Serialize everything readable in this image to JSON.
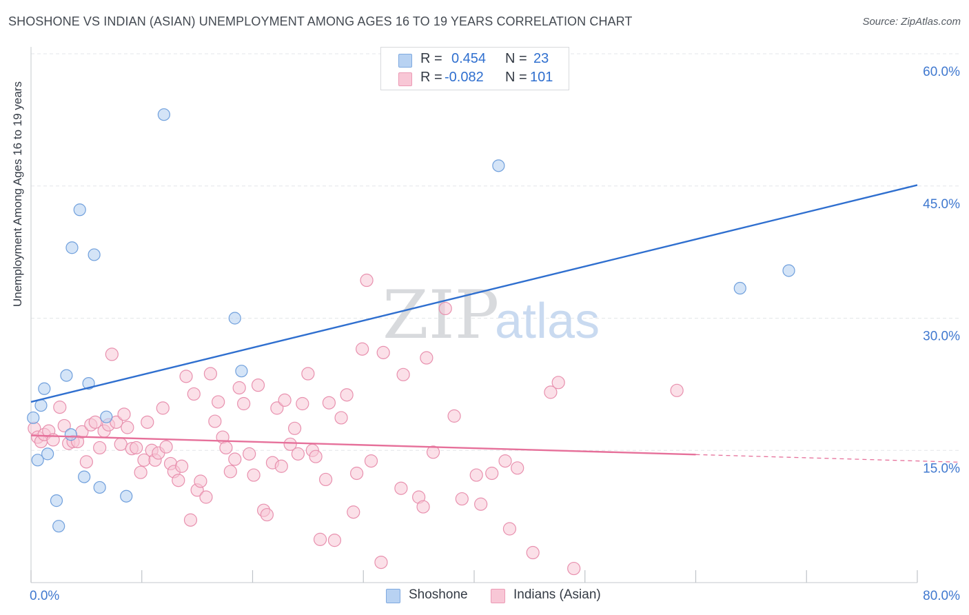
{
  "header": {
    "title": "SHOSHONE VS INDIAN (ASIAN) UNEMPLOYMENT AMONG AGES 16 TO 19 YEARS CORRELATION CHART",
    "source": "Source: ZipAtlas.com"
  },
  "watermark": {
    "zip": "ZIP",
    "atlas": "atlas"
  },
  "legend": {
    "shoshone": {
      "r_label": "R =",
      "r_value": "0.454",
      "n_label": "N =",
      "n_value": "23"
    },
    "indian": {
      "r_label": "R =",
      "r_value": "-0.082",
      "n_label": "N =",
      "n_value": "101"
    }
  },
  "bottom_legend": {
    "shoshone": "Shoshone",
    "indian": "Indians (Asian)"
  },
  "colors": {
    "blue_fill": "#b8d2f2",
    "blue_stroke": "#6f9fdc",
    "blue_line": "#2f6fcf",
    "pink_fill": "#f8c7d6",
    "pink_stroke": "#e890ae",
    "pink_line": "#e6709a",
    "grid": "#e3e5e8",
    "tick_label": "#3f78cf"
  },
  "chart_data": {
    "type": "scatter",
    "title": "SHOSHONE VS INDIAN (ASIAN) UNEMPLOYMENT AMONG AGES 16 TO 19 YEARS CORRELATION CHART",
    "xlabel": "",
    "ylabel": "Unemployment Among Ages 16 to 19 years",
    "xlim": [
      0,
      80
    ],
    "ylim": [
      0,
      60
    ],
    "x_tick_labels": [
      "0.0%",
      "80.0%"
    ],
    "y_ticks": [
      15,
      30,
      45,
      60
    ],
    "y_tick_labels": [
      "15.0%",
      "30.0%",
      "45.0%",
      "60.0%"
    ],
    "series": [
      {
        "name": "Shoshone",
        "color": "#6f9fdc",
        "points": [
          [
            0.2,
            18.7
          ],
          [
            0.6,
            13.9
          ],
          [
            0.9,
            20.1
          ],
          [
            1.2,
            22.0
          ],
          [
            1.5,
            14.6
          ],
          [
            2.3,
            9.3
          ],
          [
            2.5,
            6.4
          ],
          [
            3.2,
            23.5
          ],
          [
            3.6,
            16.8
          ],
          [
            3.7,
            38.0
          ],
          [
            4.4,
            42.3
          ],
          [
            4.8,
            12.0
          ],
          [
            5.2,
            22.6
          ],
          [
            5.7,
            37.2
          ],
          [
            6.2,
            10.8
          ],
          [
            6.8,
            18.8
          ],
          [
            8.6,
            9.8
          ],
          [
            12.0,
            53.1
          ],
          [
            18.4,
            30.0
          ],
          [
            19.0,
            24.0
          ],
          [
            42.2,
            47.3
          ],
          [
            64.0,
            33.4
          ],
          [
            68.4,
            35.4
          ]
        ],
        "trend": {
          "x": [
            0,
            80
          ],
          "y": [
            20.5,
            45.1
          ]
        }
      },
      {
        "name": "Indians (Asian)",
        "color": "#e890ae",
        "points": [
          [
            0.3,
            17.5
          ],
          [
            0.6,
            16.5
          ],
          [
            0.9,
            16.0
          ],
          [
            1.2,
            16.8
          ],
          [
            1.6,
            17.2
          ],
          [
            2.0,
            16.2
          ],
          [
            2.6,
            19.9
          ],
          [
            3.0,
            17.8
          ],
          [
            3.4,
            15.8
          ],
          [
            3.8,
            16.0
          ],
          [
            4.2,
            16.0
          ],
          [
            4.6,
            17.1
          ],
          [
            5.0,
            13.7
          ],
          [
            5.4,
            17.9
          ],
          [
            5.8,
            18.2
          ],
          [
            6.2,
            15.3
          ],
          [
            6.6,
            17.2
          ],
          [
            7.0,
            17.9
          ],
          [
            7.3,
            25.9
          ],
          [
            7.7,
            18.2
          ],
          [
            8.1,
            15.7
          ],
          [
            8.4,
            19.1
          ],
          [
            8.7,
            17.6
          ],
          [
            9.1,
            15.2
          ],
          [
            9.5,
            15.3
          ],
          [
            9.9,
            12.5
          ],
          [
            10.2,
            13.9
          ],
          [
            10.5,
            18.2
          ],
          [
            10.9,
            15.0
          ],
          [
            11.2,
            13.9
          ],
          [
            11.5,
            14.7
          ],
          [
            11.9,
            19.8
          ],
          [
            12.2,
            15.4
          ],
          [
            12.6,
            13.5
          ],
          [
            12.9,
            12.6
          ],
          [
            13.3,
            11.6
          ],
          [
            13.6,
            13.2
          ],
          [
            14.0,
            23.4
          ],
          [
            14.4,
            7.1
          ],
          [
            14.7,
            21.4
          ],
          [
            15.0,
            10.5
          ],
          [
            15.3,
            11.5
          ],
          [
            15.8,
            9.7
          ],
          [
            16.2,
            23.7
          ],
          [
            16.6,
            18.3
          ],
          [
            16.9,
            20.5
          ],
          [
            17.3,
            16.5
          ],
          [
            17.6,
            15.3
          ],
          [
            18.0,
            12.6
          ],
          [
            18.4,
            14.0
          ],
          [
            18.8,
            22.1
          ],
          [
            19.2,
            20.3
          ],
          [
            19.7,
            14.6
          ],
          [
            20.1,
            12.2
          ],
          [
            20.5,
            22.4
          ],
          [
            21.0,
            8.2
          ],
          [
            21.3,
            7.7
          ],
          [
            21.8,
            13.6
          ],
          [
            22.2,
            19.8
          ],
          [
            22.6,
            13.2
          ],
          [
            22.9,
            20.7
          ],
          [
            23.4,
            15.7
          ],
          [
            23.8,
            17.5
          ],
          [
            24.1,
            14.6
          ],
          [
            24.5,
            20.3
          ],
          [
            25.0,
            23.7
          ],
          [
            25.4,
            15.0
          ],
          [
            25.7,
            14.3
          ],
          [
            26.1,
            4.9
          ],
          [
            26.6,
            11.7
          ],
          [
            26.9,
            20.4
          ],
          [
            27.4,
            4.8
          ],
          [
            28.0,
            18.7
          ],
          [
            28.5,
            21.3
          ],
          [
            29.1,
            8.0
          ],
          [
            29.4,
            12.4
          ],
          [
            29.9,
            26.5
          ],
          [
            30.3,
            34.3
          ],
          [
            30.7,
            13.8
          ],
          [
            31.6,
            2.3
          ],
          [
            31.8,
            26.1
          ],
          [
            33.4,
            10.7
          ],
          [
            33.6,
            23.6
          ],
          [
            35.0,
            9.7
          ],
          [
            35.4,
            8.6
          ],
          [
            35.7,
            25.5
          ],
          [
            36.3,
            14.8
          ],
          [
            37.4,
            31.1
          ],
          [
            38.2,
            18.9
          ],
          [
            38.9,
            9.5
          ],
          [
            40.2,
            12.2
          ],
          [
            40.6,
            8.9
          ],
          [
            41.6,
            12.4
          ],
          [
            42.8,
            13.8
          ],
          [
            43.2,
            6.1
          ],
          [
            43.9,
            13.0
          ],
          [
            45.3,
            3.4
          ],
          [
            46.9,
            21.6
          ],
          [
            47.6,
            22.7
          ],
          [
            49.0,
            1.6
          ],
          [
            58.3,
            21.8
          ]
        ],
        "trend": {
          "x": [
            0,
            80
          ],
          "y": [
            16.7,
            13.8
          ]
        }
      }
    ]
  }
}
